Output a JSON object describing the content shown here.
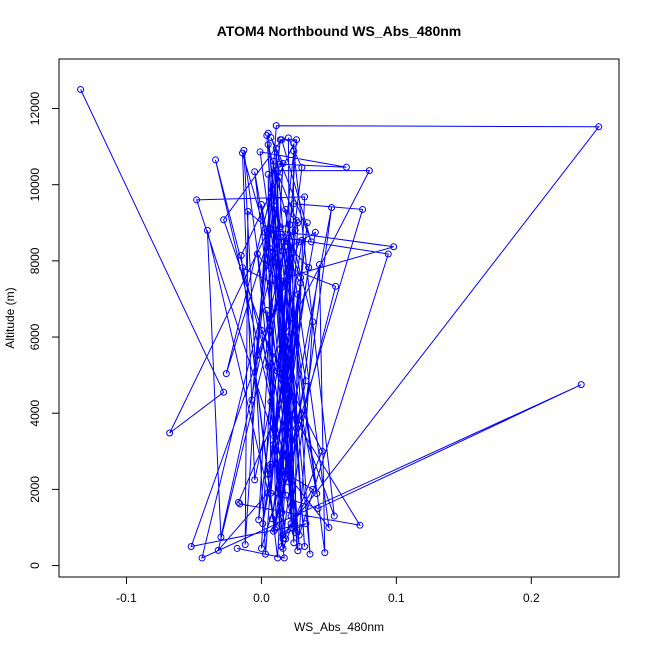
{
  "chart_data": {
    "type": "line",
    "title": "ATOM4 Northbound WS_Abs_480nm",
    "xlabel": "WS_Abs_480nm",
    "ylabel": "Altitude (m)",
    "xlim": [
      -0.15,
      0.265
    ],
    "ylim": [
      -300,
      13300
    ],
    "xticks": [
      -0.1,
      0.0,
      0.1,
      0.2
    ],
    "xtick_labels": [
      "-0.1",
      "0.0",
      "0.1",
      "0.2"
    ],
    "yticks": [
      0,
      2000,
      4000,
      6000,
      8000,
      10000,
      12000
    ],
    "ytick_labels": [
      "0",
      "2000",
      "4000",
      "6000",
      "8000",
      "10000",
      "12000"
    ],
    "grid": false,
    "series": [
      {
        "color": "#0000ff",
        "marker": "open-circle",
        "points": [
          {
            "x": -0.134,
            "y": 12500
          },
          {
            "x": -0.028,
            "y": 4550
          },
          {
            "x": -0.068,
            "y": 3480
          },
          {
            "x": 0.006,
            "y": 8870
          },
          {
            "x": 0.011,
            "y": 11550
          },
          {
            "x": 0.25,
            "y": 11520
          },
          {
            "x": 0.016,
            "y": 800
          },
          {
            "x": 0.033,
            "y": 1100
          },
          {
            "x": -0.052,
            "y": 500
          },
          {
            "x": 0.028,
            "y": 8500
          },
          {
            "x": -0.003,
            "y": 5520
          },
          {
            "x": 0.014,
            "y": 11180
          },
          {
            "x": 0.026,
            "y": 11180
          },
          {
            "x": 0.003,
            "y": 300
          },
          {
            "x": -0.013,
            "y": 10900
          },
          {
            "x": 0.02,
            "y": 2200
          },
          {
            "x": -0.048,
            "y": 9600
          },
          {
            "x": 0.032,
            "y": 9680
          },
          {
            "x": 0.022,
            "y": 1100
          },
          {
            "x": 0.011,
            "y": 10370
          },
          {
            "x": 0.08,
            "y": 10370
          },
          {
            "x": 0.005,
            "y": 5230
          },
          {
            "x": -0.034,
            "y": 10650
          },
          {
            "x": 0.016,
            "y": 2950
          },
          {
            "x": 0.012,
            "y": 200
          },
          {
            "x": -0.015,
            "y": 8140
          },
          {
            "x": 0.024,
            "y": 11080
          },
          {
            "x": 0.022,
            "y": 1000
          },
          {
            "x": 0.02,
            "y": 11230
          },
          {
            "x": 0.03,
            "y": 10450
          },
          {
            "x": -0.002,
            "y": 1200
          },
          {
            "x": 0.013,
            "y": 10540
          },
          {
            "x": 0.063,
            "y": 10460
          },
          {
            "x": -0.001,
            "y": 10860
          },
          {
            "x": 0.018,
            "y": 5900
          },
          {
            "x": 0.005,
            "y": 11350
          },
          {
            "x": 0.023,
            "y": 3300
          },
          {
            "x": 0.009,
            "y": 10620
          },
          {
            "x": -0.007,
            "y": 4350
          },
          {
            "x": 0.005,
            "y": 8670
          },
          {
            "x": 0.011,
            "y": 1000
          },
          {
            "x": -0.04,
            "y": 8800
          },
          {
            "x": -0.03,
            "y": 750
          },
          {
            "x": 0.024,
            "y": 9500
          },
          {
            "x": 0.075,
            "y": 9350
          },
          {
            "x": 0.0,
            "y": 450
          },
          {
            "x": 0.016,
            "y": 10560
          },
          {
            "x": 0.007,
            "y": 11240
          },
          {
            "x": 0.037,
            "y": 8500
          },
          {
            "x": 0.015,
            "y": 11180
          },
          {
            "x": -0.028,
            "y": 9080
          },
          {
            "x": 0.026,
            "y": 3600
          },
          {
            "x": 0.01,
            "y": 8800
          },
          {
            "x": 0.098,
            "y": 8370
          },
          {
            "x": 0.012,
            "y": 7500
          },
          {
            "x": 0.018,
            "y": 8600
          },
          {
            "x": 0.094,
            "y": 8180
          },
          {
            "x": 0.028,
            "y": 800
          },
          {
            "x": 0.038,
            "y": 6400
          },
          {
            "x": 0.005,
            "y": 11050
          },
          {
            "x": 0.041,
            "y": 1890
          },
          {
            "x": 0.0,
            "y": 9480
          },
          {
            "x": 0.028,
            "y": 500
          },
          {
            "x": 0.008,
            "y": 9870
          },
          {
            "x": -0.026,
            "y": 5040
          },
          {
            "x": 0.007,
            "y": 8800
          },
          {
            "x": 0.014,
            "y": 8620
          },
          {
            "x": 0.036,
            "y": 300
          },
          {
            "x": 0.022,
            "y": 8060
          },
          {
            "x": 0.006,
            "y": 8330
          },
          {
            "x": 0.01,
            "y": 8200
          },
          {
            "x": 0.006,
            "y": 7950
          },
          {
            "x": 0.025,
            "y": 8800
          },
          {
            "x": -0.032,
            "y": 400
          },
          {
            "x": 0.005,
            "y": 1920
          },
          {
            "x": 0.042,
            "y": 1500
          },
          {
            "x": 0.237,
            "y": 4750
          },
          {
            "x": -0.044,
            "y": 200
          },
          {
            "x": 0.009,
            "y": 8000
          },
          {
            "x": 0.022,
            "y": 1300
          },
          {
            "x": 0.015,
            "y": 7300
          },
          {
            "x": -0.014,
            "y": 7820
          },
          {
            "x": 0.01,
            "y": 950
          },
          {
            "x": 0.034,
            "y": 9000
          },
          {
            "x": 0.012,
            "y": 1900
          },
          {
            "x": 0.052,
            "y": 9400
          },
          {
            "x": 0.023,
            "y": 1600
          },
          {
            "x": 0.011,
            "y": 7950
          },
          {
            "x": 0.055,
            "y": 7330
          },
          {
            "x": 0.009,
            "y": 900
          },
          {
            "x": 0.033,
            "y": 4850
          },
          {
            "x": 0.016,
            "y": 8260
          },
          {
            "x": 0.04,
            "y": 8750
          },
          {
            "x": 0.001,
            "y": 1100
          },
          {
            "x": 0.007,
            "y": 2660
          },
          {
            "x": 0.038,
            "y": 2000
          },
          {
            "x": 0.016,
            "y": 700
          },
          {
            "x": 0.043,
            "y": 7900
          },
          {
            "x": 0.047,
            "y": 340
          },
          {
            "x": 0.017,
            "y": 8500
          },
          {
            "x": 0.035,
            "y": 7830
          },
          {
            "x": 0.008,
            "y": 1230
          },
          {
            "x": 0.02,
            "y": 4670
          },
          {
            "x": -0.017,
            "y": 1660
          },
          {
            "x": -0.016,
            "y": 1620
          },
          {
            "x": 0.073,
            "y": 1060
          },
          {
            "x": 0.019,
            "y": 4180
          },
          {
            "x": 0.004,
            "y": 6700
          },
          {
            "x": 0.016,
            "y": 450
          },
          {
            "x": 0.045,
            "y": 3000
          },
          {
            "x": 0.0,
            "y": 6180
          },
          {
            "x": 0.018,
            "y": 1850
          },
          {
            "x": 0.025,
            "y": 870
          },
          {
            "x": 0.027,
            "y": 7120
          },
          {
            "x": 0.011,
            "y": 2700
          },
          {
            "x": 0.029,
            "y": 7420
          },
          {
            "x": 0.01,
            "y": 3580
          },
          {
            "x": 0.03,
            "y": 8540
          },
          {
            "x": 0.005,
            "y": 2400
          },
          {
            "x": 0.021,
            "y": 5500
          },
          {
            "x": 0.032,
            "y": 500
          },
          {
            "x": 0.013,
            "y": 10200
          },
          {
            "x": 0.026,
            "y": 9060
          },
          {
            "x": 0.007,
            "y": 1900
          },
          {
            "x": 0.005,
            "y": 10270
          },
          {
            "x": 0.01,
            "y": 3380
          },
          {
            "x": 0.02,
            "y": 6000
          },
          {
            "x": 0.015,
            "y": 1400
          },
          {
            "x": 0.029,
            "y": 7560
          },
          {
            "x": 0.009,
            "y": 9450
          },
          {
            "x": 0.014,
            "y": 8890
          },
          {
            "x": 0.021,
            "y": 8950
          },
          {
            "x": 0.024,
            "y": 600
          },
          {
            "x": 0.004,
            "y": 11290
          },
          {
            "x": 0.027,
            "y": 390
          },
          {
            "x": -0.005,
            "y": 10340
          },
          {
            "x": 0.012,
            "y": 6800
          },
          {
            "x": 0.024,
            "y": 10880
          },
          {
            "x": 0.054,
            "y": 1300
          },
          {
            "x": 0.014,
            "y": 5160
          },
          {
            "x": 0.012,
            "y": 7450
          },
          {
            "x": -0.003,
            "y": 8180
          },
          {
            "x": 0.018,
            "y": 700
          },
          {
            "x": 0.009,
            "y": 3170
          },
          {
            "x": 0.02,
            "y": 7800
          },
          {
            "x": 0.012,
            "y": 5100
          },
          {
            "x": -0.005,
            "y": 2250
          },
          {
            "x": -0.014,
            "y": 10830
          },
          {
            "x": 0.003,
            "y": 8740
          },
          {
            "x": -0.012,
            "y": 550
          },
          {
            "x": -0.01,
            "y": 9300
          },
          {
            "x": 0.012,
            "y": 8630
          },
          {
            "x": 0.008,
            "y": 7950
          },
          {
            "x": 0.011,
            "y": 10950
          },
          {
            "x": 0.019,
            "y": 2400
          },
          {
            "x": 0.05,
            "y": 1000
          },
          {
            "x": 0.018,
            "y": 9350
          },
          {
            "x": 0.027,
            "y": 9000
          },
          {
            "x": 0.022,
            "y": 5400
          },
          {
            "x": 0.015,
            "y": 500
          },
          {
            "x": 0.007,
            "y": 4300
          },
          {
            "x": 0.021,
            "y": 8950
          },
          {
            "x": 0.013,
            "y": 1200
          },
          {
            "x": 0.017,
            "y": 200
          },
          {
            "x": -0.018,
            "y": 450
          }
        ]
      }
    ]
  }
}
